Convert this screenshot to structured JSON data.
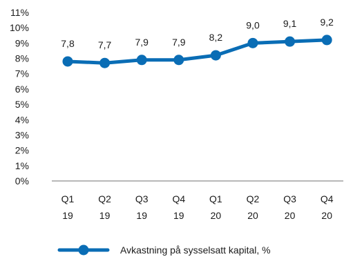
{
  "chart_data": {
    "type": "line",
    "title": "",
    "xlabel": "",
    "ylabel": "",
    "ylim": [
      0,
      11
    ],
    "y_ticks": [
      "0%",
      "1%",
      "2%",
      "3%",
      "4%",
      "5%",
      "6%",
      "7%",
      "8%",
      "9%",
      "10%",
      "11%"
    ],
    "categories": [
      {
        "quarter": "Q1",
        "year": "19"
      },
      {
        "quarter": "Q2",
        "year": "19"
      },
      {
        "quarter": "Q3",
        "year": "19"
      },
      {
        "quarter": "Q4",
        "year": "19"
      },
      {
        "quarter": "Q1",
        "year": "20"
      },
      {
        "quarter": "Q2",
        "year": "20"
      },
      {
        "quarter": "Q3",
        "year": "20"
      },
      {
        "quarter": "Q4",
        "year": "20"
      }
    ],
    "series": [
      {
        "name": "Avkastning på sysselsatt kapital, %",
        "values": [
          7.8,
          7.7,
          7.9,
          7.9,
          8.2,
          9.0,
          9.1,
          9.2
        ],
        "data_labels": [
          "7,8",
          "7,7",
          "7,9",
          "7,9",
          "8,2",
          "9,0",
          "9,1",
          "9,2"
        ],
        "color": "#0a6db5"
      }
    ],
    "grid": false,
    "legend_position": "bottom"
  }
}
